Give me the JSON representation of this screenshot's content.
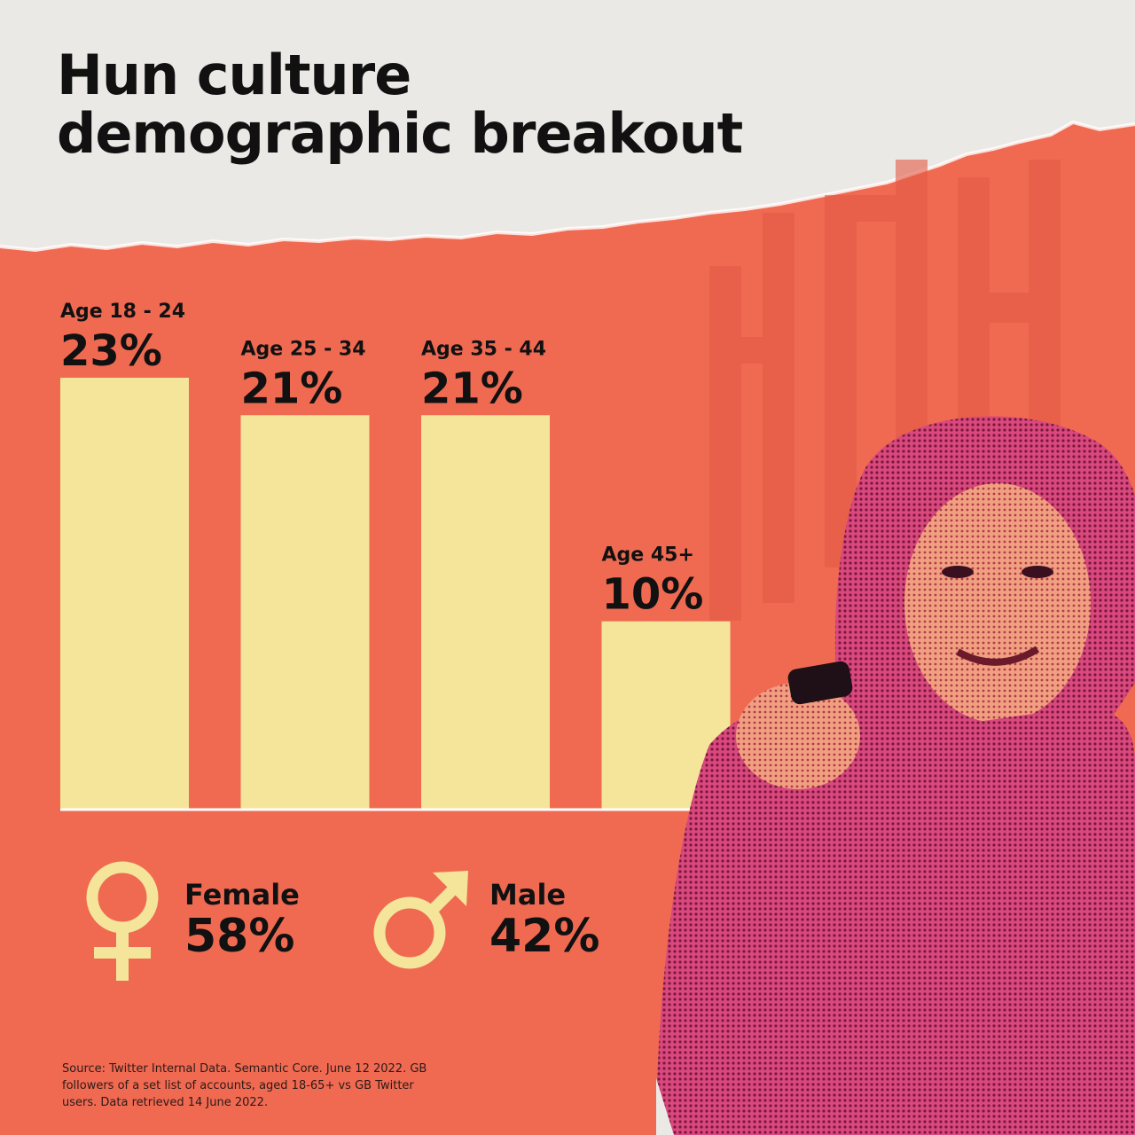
{
  "title": {
    "line1": "Hun culture",
    "line2": "demographic breakout"
  },
  "chart_data": {
    "type": "bar",
    "categories": [
      "Age 18 - 24",
      "Age 25 - 34",
      "Age 35 - 44",
      "Age 45+"
    ],
    "values": [
      23,
      21,
      21,
      10
    ],
    "value_labels": [
      "23%",
      "21%",
      "21%",
      "10%"
    ],
    "xlabel": "",
    "ylabel": "",
    "ylim": [
      0,
      23
    ],
    "grid": false,
    "legend": "none"
  },
  "gender": {
    "female": {
      "label": "Female",
      "value": "58%",
      "icon": "female-symbol-icon"
    },
    "male": {
      "label": "Male",
      "value": "42%",
      "icon": "male-symbol-icon"
    }
  },
  "source": "Source: Twitter Internal Data. Semantic Core. June 12 2022. GB followers of a set list of accounts, aged 18-65+ vs GB Twitter users. Data retrieved 14 June 2022.",
  "colors": {
    "background": "#f06a52",
    "paper": "#ebe9e6",
    "bar": "#f4e59a",
    "text": "#111111",
    "photo_tint": "#cf3f7a"
  }
}
